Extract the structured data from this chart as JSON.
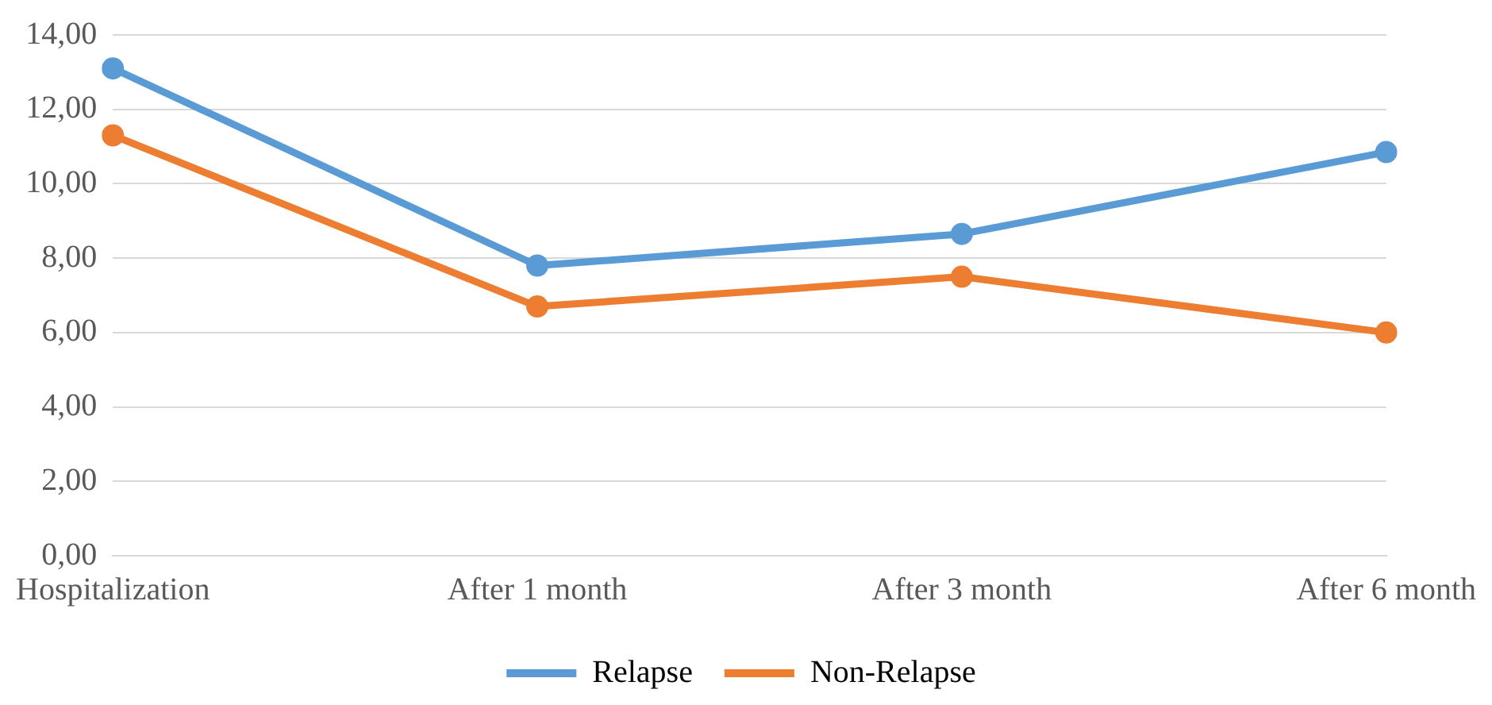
{
  "chart_data": {
    "type": "line",
    "categories": [
      "Hospitalization",
      "After 1 month",
      "After 3 month",
      "After 6 month"
    ],
    "series": [
      {
        "name": "Relapse",
        "color": "#5b9bd5",
        "values": [
          13.1,
          7.8,
          8.65,
          10.85
        ]
      },
      {
        "name": "Non-Relapse",
        "color": "#ed7d31",
        "values": [
          11.3,
          6.7,
          7.5,
          6.0
        ]
      }
    ],
    "ylim": [
      0,
      14
    ],
    "yticks": [
      {
        "value": 0,
        "label": "0,00"
      },
      {
        "value": 2,
        "label": "2,00"
      },
      {
        "value": 4,
        "label": "4,00"
      },
      {
        "value": 6,
        "label": "6,00"
      },
      {
        "value": 8,
        "label": "8,00"
      },
      {
        "value": 10,
        "label": "10,00"
      },
      {
        "value": 12,
        "label": "12,00"
      },
      {
        "value": 14,
        "label": "14,00"
      }
    ],
    "grid": "y",
    "legend": "bottom",
    "marker": "circle",
    "line_style": "solid"
  }
}
